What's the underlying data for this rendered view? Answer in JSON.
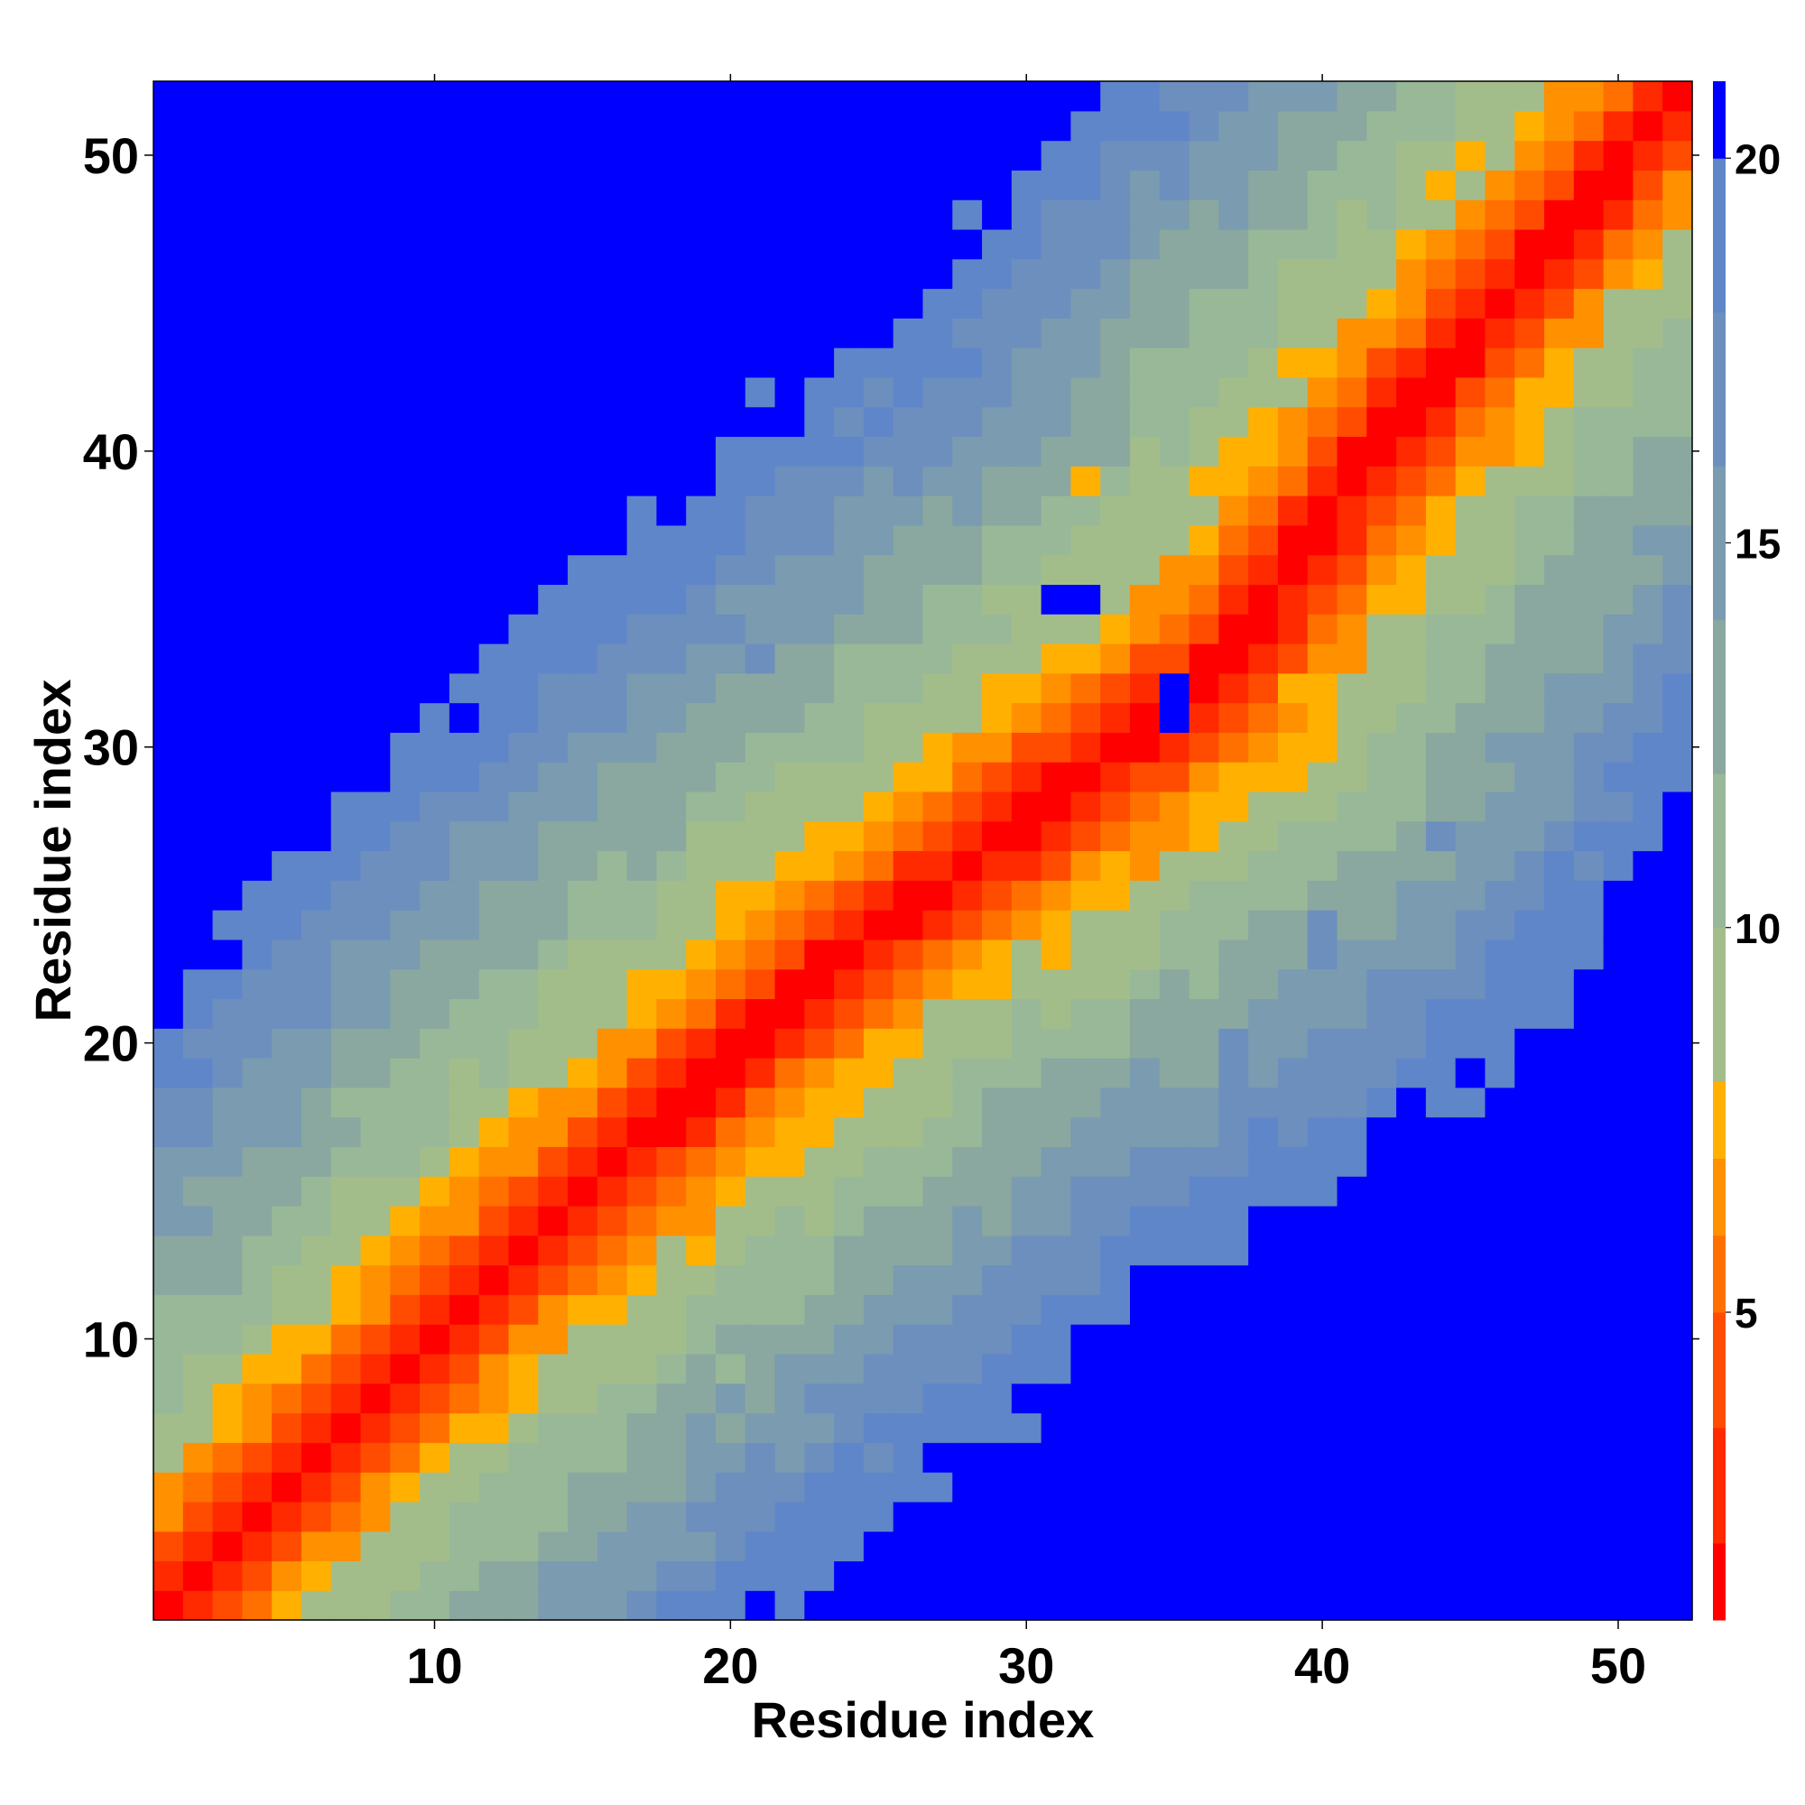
{
  "chart_data": {
    "type": "heatmap",
    "title": "",
    "xlabel": "Residue index",
    "ylabel": "Residue index",
    "n_residues": 52,
    "xlim": [
      0.5,
      52.5
    ],
    "ylim": [
      0.5,
      52.5
    ],
    "x_ticks": [
      "10",
      "20",
      "30",
      "40",
      "50"
    ],
    "y_ticks": [
      "10",
      "20",
      "30",
      "40",
      "50"
    ],
    "colorbar": {
      "range": [
        1,
        21
      ],
      "ticks": [
        "5",
        "10",
        "15",
        "20"
      ],
      "levels": [
        {
          "max": 2,
          "color": "#ff0000"
        },
        {
          "max": 3.5,
          "color": "#ff2a00"
        },
        {
          "max": 5,
          "color": "#ff4c00"
        },
        {
          "max": 6,
          "color": "#ff7000"
        },
        {
          "max": 7,
          "color": "#ff9000"
        },
        {
          "max": 8,
          "color": "#ffb000"
        },
        {
          "max": 10,
          "color": "#a3bd8a"
        },
        {
          "max": 12,
          "color": "#98b898"
        },
        {
          "max": 14,
          "color": "#8aa8a0"
        },
        {
          "max": 16,
          "color": "#7a9bb0"
        },
        {
          "max": 18,
          "color": "#6d8fbe"
        },
        {
          "max": 20,
          "color": "#5f86c8"
        },
        {
          "max": 21,
          "color": "#0000ff"
        }
      ]
    },
    "cap_value": 21,
    "value_model": "distance between residues i and j, values at or above 20 shown in blue",
    "band_center_offset": [
      [
        1,
        0
      ],
      [
        14,
        0
      ],
      [
        24,
        -1
      ],
      [
        27,
        -2
      ],
      [
        31,
        -3
      ],
      [
        35,
        -4
      ],
      [
        40,
        -2
      ],
      [
        45,
        -1
      ],
      [
        52,
        0
      ]
    ],
    "contact_scale": [
      [
        0,
        0.9
      ],
      [
        1,
        2.4
      ],
      [
        2,
        4.8
      ],
      [
        3,
        6.3
      ],
      [
        4,
        7.4
      ],
      [
        5,
        8.4
      ],
      [
        6,
        9.3
      ],
      [
        7,
        10.2
      ],
      [
        8,
        11.0
      ],
      [
        10,
        12.8
      ],
      [
        12,
        14.4
      ],
      [
        14,
        16.2
      ],
      [
        16,
        18.0
      ],
      [
        18,
        19.6
      ],
      [
        20,
        21
      ]
    ],
    "width_profile": [
      [
        1,
        1.05
      ],
      [
        10,
        1.1
      ],
      [
        18,
        1.15
      ],
      [
        26,
        1.2
      ],
      [
        32,
        1.25
      ],
      [
        38,
        1.2
      ],
      [
        46,
        1.1
      ],
      [
        52,
        1.0
      ]
    ],
    "outliers": [
      {
        "i": 32,
        "j": 35,
        "v": 21
      },
      {
        "i": 35,
        "j": 32,
        "v": 21
      },
      {
        "i": 35,
        "j": 31,
        "v": 21
      },
      {
        "i": 31,
        "j": 35,
        "v": 21
      },
      {
        "i": 32,
        "j": 39,
        "v": 7.5
      },
      {
        "i": 39,
        "j": 32,
        "v": 7.5
      },
      {
        "i": 32,
        "j": 47,
        "v": 17
      },
      {
        "i": 28,
        "j": 44,
        "v": 17
      },
      {
        "i": 21,
        "j": 37,
        "v": 17
      },
      {
        "i": 21,
        "j": 33,
        "v": 17
      },
      {
        "i": 44,
        "j": 27,
        "v": 17
      },
      {
        "i": 40,
        "j": 24,
        "v": 17
      },
      {
        "i": 40,
        "j": 23,
        "v": 17
      },
      {
        "i": 37,
        "j": 20,
        "v": 17
      },
      {
        "i": 37,
        "j": 19,
        "v": 17
      }
    ]
  }
}
